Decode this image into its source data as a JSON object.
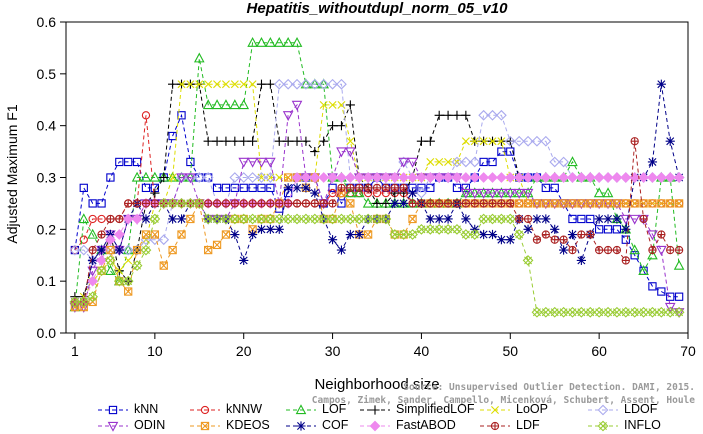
{
  "chart_data": {
    "type": "line",
    "title": "Hepatitis_withoutdupl_norm_05_v10",
    "xlabel": "Neighborhood size",
    "ylabel": "Adjusted Maximum F1",
    "xlim": [
      0,
      70
    ],
    "ylim": [
      0,
      0.6
    ],
    "xticks": [
      1,
      10,
      20,
      30,
      40,
      50,
      60,
      70
    ],
    "yticks": [
      0.0,
      0.1,
      0.2,
      0.3,
      0.4,
      0.5,
      0.6
    ],
    "grid": false,
    "legend": "bottom",
    "x": [
      1,
      2,
      3,
      4,
      5,
      6,
      7,
      8,
      9,
      10,
      11,
      12,
      13,
      14,
      15,
      16,
      17,
      18,
      19,
      20,
      21,
      22,
      23,
      24,
      25,
      26,
      27,
      28,
      29,
      30,
      31,
      32,
      33,
      34,
      35,
      36,
      37,
      38,
      39,
      40,
      41,
      42,
      43,
      44,
      45,
      46,
      47,
      48,
      49,
      50,
      51,
      52,
      53,
      54,
      55,
      56,
      57,
      58,
      59,
      60,
      61,
      62,
      63,
      64,
      65,
      66,
      67,
      68,
      69
    ],
    "series": [
      {
        "name": "kNN",
        "color": "#0000cc",
        "marker": "square",
        "values": [
          0.16,
          0.28,
          0.25,
          0.25,
          0.3,
          0.33,
          0.33,
          0.33,
          0.28,
          0.28,
          0.3,
          0.38,
          0.42,
          0.33,
          0.3,
          0.3,
          0.28,
          0.28,
          0.28,
          0.28,
          0.28,
          0.28,
          0.28,
          0.24,
          0.27,
          0.3,
          0.3,
          0.3,
          0.25,
          0.28,
          0.25,
          0.28,
          0.28,
          0.28,
          0.3,
          0.28,
          0.28,
          0.28,
          0.28,
          0.28,
          0.28,
          0.3,
          0.3,
          0.28,
          0.28,
          0.3,
          0.33,
          0.33,
          0.35,
          0.35,
          0.3,
          0.3,
          0.3,
          0.28,
          0.28,
          0.25,
          0.22,
          0.22,
          0.22,
          0.2,
          0.2,
          0.2,
          0.18,
          0.15,
          0.12,
          0.09,
          0.08,
          0.07,
          0.07
        ]
      },
      {
        "name": "kNNW",
        "color": "#dd2222",
        "marker": "circle",
        "values": [
          0.16,
          0.18,
          0.22,
          0.22,
          0.22,
          0.22,
          0.25,
          0.25,
          0.42,
          0.25,
          0.25,
          0.25,
          0.25,
          0.25,
          0.25,
          0.25,
          0.25,
          0.25,
          0.25,
          0.25,
          0.25,
          0.25,
          0.25,
          0.25,
          0.25,
          0.25,
          0.25,
          0.25,
          0.25,
          0.27,
          0.27,
          0.27,
          0.27,
          0.27,
          0.27,
          0.27,
          0.27,
          0.27,
          0.25,
          0.25,
          0.25,
          0.25,
          0.25,
          0.25,
          0.25,
          0.25,
          0.25,
          0.25,
          0.25,
          0.25,
          0.25,
          0.25,
          0.25,
          0.25,
          0.25,
          0.25,
          0.25,
          0.25,
          0.25,
          0.25,
          0.25,
          0.25,
          0.25,
          0.25,
          0.25,
          0.25,
          0.25,
          0.25,
          0.25
        ]
      },
      {
        "name": "LOF",
        "color": "#22bb22",
        "marker": "triangle",
        "values": [
          0.05,
          0.22,
          0.19,
          0.16,
          0.12,
          0.1,
          0.16,
          0.3,
          0.3,
          0.3,
          0.3,
          0.3,
          0.3,
          0.3,
          0.53,
          0.44,
          0.44,
          0.44,
          0.44,
          0.44,
          0.56,
          0.56,
          0.56,
          0.56,
          0.56,
          0.56,
          0.48,
          0.48,
          0.48,
          0.3,
          0.3,
          0.27,
          0.27,
          0.25,
          0.25,
          0.25,
          0.25,
          0.25,
          0.25,
          0.25,
          0.25,
          0.25,
          0.25,
          0.25,
          0.27,
          0.27,
          0.27,
          0.27,
          0.27,
          0.27,
          0.27,
          0.27,
          0.3,
          0.3,
          0.3,
          0.3,
          0.33,
          0.3,
          0.3,
          0.27,
          0.27,
          0.22,
          0.2,
          0.16,
          0.12,
          0.15,
          0.3,
          0.3,
          0.13
        ]
      },
      {
        "name": "SimplifiedLOF",
        "color": "#000000",
        "marker": "plus",
        "values": [
          0.07,
          0.07,
          0.14,
          0.14,
          0.19,
          0.12,
          0.1,
          0.16,
          0.25,
          0.27,
          0.3,
          0.48,
          0.48,
          0.48,
          0.48,
          0.37,
          0.37,
          0.37,
          0.37,
          0.37,
          0.37,
          0.48,
          0.48,
          0.37,
          0.37,
          0.37,
          0.37,
          0.35,
          0.37,
          0.4,
          0.4,
          0.44,
          0.3,
          0.28,
          0.25,
          0.25,
          0.27,
          0.27,
          0.3,
          0.37,
          0.37,
          0.42,
          0.42,
          0.42,
          0.42,
          0.37,
          0.37,
          0.37,
          0.37,
          0.37,
          0.3,
          0.3,
          0.3,
          0.3,
          0.3,
          0.3,
          0.3,
          0.3,
          0.3,
          0.3,
          0.3,
          0.3,
          0.3,
          0.3,
          0.3,
          0.3,
          0.3,
          0.3,
          0.3
        ]
      },
      {
        "name": "LoOP",
        "color": "#dddd00",
        "marker": "x",
        "values": [
          0.05,
          0.07,
          0.1,
          0.12,
          0.14,
          0.12,
          0.14,
          0.16,
          0.18,
          0.25,
          0.25,
          0.3,
          0.48,
          0.48,
          0.48,
          0.48,
          0.48,
          0.48,
          0.48,
          0.48,
          0.48,
          0.3,
          0.3,
          0.3,
          0.3,
          0.3,
          0.3,
          0.3,
          0.44,
          0.44,
          0.44,
          0.37,
          0.3,
          0.3,
          0.3,
          0.3,
          0.3,
          0.3,
          0.3,
          0.3,
          0.33,
          0.33,
          0.33,
          0.33,
          0.37,
          0.37,
          0.37,
          0.37,
          0.37,
          0.3,
          0.3,
          0.25,
          0.25,
          0.25,
          0.25,
          0.25,
          0.25,
          0.25,
          0.25,
          0.25,
          0.25,
          0.25,
          0.25,
          0.25,
          0.25,
          0.25,
          0.25,
          0.25,
          0.25
        ]
      },
      {
        "name": "LDOF",
        "color": "#aaaaee",
        "marker": "diamond",
        "values": [
          0.16,
          0.16,
          0.14,
          0.16,
          0.16,
          0.16,
          0.16,
          0.16,
          0.18,
          0.18,
          0.18,
          0.25,
          0.3,
          0.3,
          0.3,
          0.3,
          0.25,
          0.25,
          0.3,
          0.3,
          0.3,
          0.3,
          0.3,
          0.48,
          0.48,
          0.48,
          0.48,
          0.48,
          0.48,
          0.48,
          0.48,
          0.3,
          0.3,
          0.3,
          0.3,
          0.3,
          0.3,
          0.33,
          0.3,
          0.27,
          0.3,
          0.3,
          0.3,
          0.33,
          0.33,
          0.33,
          0.42,
          0.42,
          0.42,
          0.37,
          0.37,
          0.37,
          0.37,
          0.37,
          0.33,
          0.33,
          0.3,
          0.3,
          0.3,
          0.3,
          0.3,
          0.3,
          0.3,
          0.3,
          0.3,
          0.3,
          0.3,
          0.3,
          0.3
        ]
      },
      {
        "name": "ODIN",
        "color": "#9933cc",
        "marker": "triangle-down",
        "values": [
          0.05,
          0.05,
          0.12,
          0.16,
          0.19,
          0.16,
          0.22,
          0.22,
          0.25,
          0.25,
          0.25,
          0.25,
          0.3,
          0.3,
          0.25,
          0.22,
          0.22,
          0.22,
          0.25,
          0.33,
          0.33,
          0.33,
          0.33,
          0.25,
          0.42,
          0.44,
          0.3,
          0.3,
          0.25,
          0.3,
          0.35,
          0.35,
          0.3,
          0.3,
          0.3,
          0.3,
          0.3,
          0.33,
          0.33,
          0.3,
          0.3,
          0.3,
          0.3,
          0.3,
          0.27,
          0.27,
          0.27,
          0.27,
          0.27,
          0.27,
          0.27,
          0.27,
          0.25,
          0.25,
          0.25,
          0.25,
          0.25,
          0.25,
          0.25,
          0.25,
          0.25,
          0.25,
          0.22,
          0.22,
          0.22,
          0.19,
          0.16,
          0.05,
          0.04
        ]
      },
      {
        "name": "KDEOS",
        "color": "#ee9922",
        "marker": "square-x",
        "values": [
          0.05,
          0.05,
          0.06,
          0.12,
          0.16,
          0.1,
          0.08,
          0.16,
          0.19,
          0.19,
          0.13,
          0.16,
          0.19,
          0.22,
          0.25,
          0.16,
          0.17,
          0.19,
          0.22,
          0.22,
          0.2,
          0.22,
          0.22,
          0.25,
          0.3,
          0.3,
          0.28,
          0.3,
          0.22,
          0.22,
          0.27,
          0.25,
          0.19,
          0.19,
          0.22,
          0.22,
          0.19,
          0.19,
          0.22,
          0.25,
          0.25,
          0.25,
          0.25,
          0.25,
          0.25,
          0.25,
          0.25,
          0.25,
          0.25,
          0.25,
          0.25,
          0.25,
          0.25,
          0.25,
          0.25,
          0.25,
          0.25,
          0.25,
          0.25,
          0.25,
          0.25,
          0.25,
          0.25,
          0.25,
          0.25,
          0.25,
          0.25,
          0.25,
          0.25
        ]
      },
      {
        "name": "COF",
        "color": "#000088",
        "marker": "star",
        "values": [
          0.06,
          0.06,
          0.14,
          0.16,
          0.19,
          0.16,
          0.22,
          0.25,
          0.22,
          0.25,
          0.25,
          0.22,
          0.22,
          0.25,
          0.25,
          0.22,
          0.22,
          0.22,
          0.19,
          0.14,
          0.19,
          0.2,
          0.2,
          0.2,
          0.28,
          0.28,
          0.28,
          0.27,
          0.22,
          0.18,
          0.16,
          0.19,
          0.19,
          0.22,
          0.22,
          0.22,
          0.25,
          0.25,
          0.27,
          0.25,
          0.22,
          0.22,
          0.22,
          0.25,
          0.22,
          0.2,
          0.19,
          0.19,
          0.18,
          0.18,
          0.22,
          0.2,
          0.22,
          0.22,
          0.2,
          0.16,
          0.19,
          0.14,
          0.19,
          0.22,
          0.22,
          0.22,
          0.2,
          0.3,
          0.3,
          0.33,
          0.48,
          0.37,
          0.3
        ]
      },
      {
        "name": "FastABOD",
        "color": "#ee88ee",
        "marker": "diamond-filled",
        "values": [
          0.06,
          0.06,
          0.1,
          0.14,
          0.18,
          0.19,
          0.22,
          0.22,
          0.25,
          0.25,
          0.25,
          0.25,
          0.25,
          0.25,
          0.25,
          0.25,
          0.25,
          0.25,
          0.25,
          0.25,
          0.25,
          0.25,
          0.25,
          0.25,
          0.25,
          0.3,
          0.3,
          0.3,
          0.3,
          0.3,
          0.3,
          0.3,
          0.3,
          0.3,
          0.3,
          0.3,
          0.3,
          0.3,
          0.3,
          0.3,
          0.3,
          0.3,
          0.3,
          0.3,
          0.3,
          0.3,
          0.3,
          0.3,
          0.3,
          0.3,
          0.3,
          0.3,
          0.3,
          0.3,
          0.3,
          0.3,
          0.3,
          0.3,
          0.3,
          0.3,
          0.3,
          0.3,
          0.3,
          0.3,
          0.3,
          0.3,
          0.3,
          0.3,
          0.3
        ]
      },
      {
        "name": "LDF",
        "color": "#aa2222",
        "marker": "circle-plus",
        "values": [
          0.06,
          0.06,
          0.16,
          0.19,
          0.22,
          0.22,
          0.25,
          0.25,
          0.25,
          0.25,
          0.25,
          0.25,
          0.25,
          0.25,
          0.25,
          0.25,
          0.25,
          0.25,
          0.25,
          0.25,
          0.25,
          0.25,
          0.25,
          0.25,
          0.25,
          0.25,
          0.25,
          0.25,
          0.25,
          0.25,
          0.28,
          0.28,
          0.28,
          0.28,
          0.28,
          0.28,
          0.28,
          0.28,
          0.25,
          0.25,
          0.25,
          0.25,
          0.25,
          0.25,
          0.25,
          0.25,
          0.25,
          0.25,
          0.25,
          0.25,
          0.22,
          0.22,
          0.18,
          0.19,
          0.18,
          0.18,
          0.16,
          0.19,
          0.19,
          0.16,
          0.16,
          0.16,
          0.14,
          0.37,
          0.22,
          0.16,
          0.19,
          0.16,
          0.16
        ]
      },
      {
        "name": "INFLO",
        "color": "#99cc33",
        "marker": "x-diamond",
        "values": [
          0.06,
          0.06,
          0.07,
          0.12,
          0.14,
          0.1,
          0.1,
          0.13,
          0.16,
          0.22,
          0.25,
          0.25,
          0.25,
          0.25,
          0.25,
          0.22,
          0.22,
          0.22,
          0.22,
          0.22,
          0.22,
          0.22,
          0.22,
          0.22,
          0.22,
          0.22,
          0.22,
          0.22,
          0.22,
          0.22,
          0.22,
          0.22,
          0.22,
          0.22,
          0.22,
          0.22,
          0.19,
          0.19,
          0.19,
          0.2,
          0.2,
          0.2,
          0.2,
          0.2,
          0.19,
          0.19,
          0.22,
          0.22,
          0.22,
          0.22,
          0.19,
          0.14,
          0.04,
          0.04,
          0.04,
          0.04,
          0.04,
          0.04,
          0.04,
          0.04,
          0.04,
          0.04,
          0.04,
          0.04,
          0.04,
          0.04,
          0.04,
          0.04,
          0.04
        ]
      }
    ]
  },
  "credit": {
    "line1": "Source: Unsupervised Outlier Detection. DAMI, 2015.",
    "line2": "Campos, Zimek, Sander, Campello, Micenková, Schubert, Assent, Houle"
  }
}
